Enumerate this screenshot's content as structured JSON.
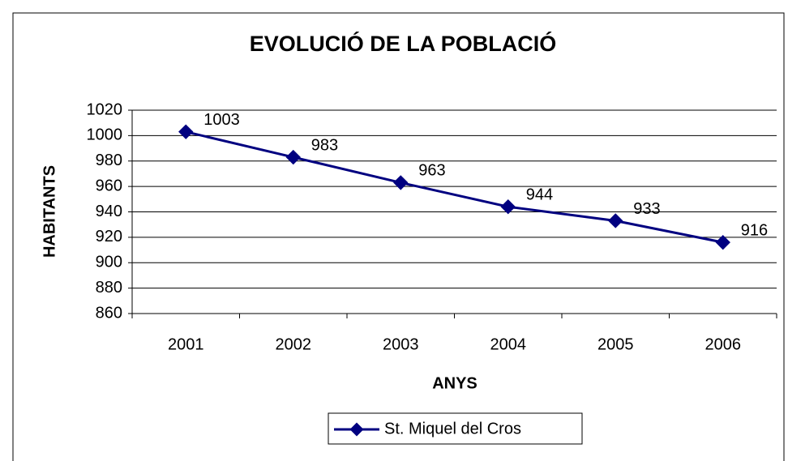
{
  "chart_data": {
    "type": "line",
    "title": "EVOLUCIÓ DE LA POBLACIÓ",
    "x_label": "ANYS",
    "y_label": "HABITANTS",
    "categories": [
      "2001",
      "2002",
      "2003",
      "2004",
      "2005",
      "2006"
    ],
    "series": [
      {
        "name": "St. Miquel del Cros",
        "color": "#000080",
        "values": [
          1003,
          983,
          963,
          944,
          933,
          916
        ]
      }
    ],
    "ylim": [
      860,
      1020
    ],
    "yticks": [
      860,
      880,
      900,
      920,
      940,
      960,
      980,
      1000,
      1020
    ],
    "grid": true,
    "legend": "bottom",
    "data_labels": true
  }
}
